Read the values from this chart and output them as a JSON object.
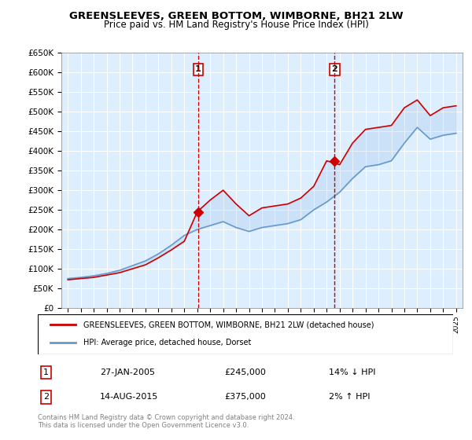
{
  "title": "GREENSLEEVES, GREEN BOTTOM, WIMBORNE, BH21 2LW",
  "subtitle": "Price paid vs. HM Land Registry's House Price Index (HPI)",
  "ylabel_ticks": [
    "£0",
    "£50K",
    "£100K",
    "£150K",
    "£200K",
    "£250K",
    "£300K",
    "£350K",
    "£400K",
    "£450K",
    "£500K",
    "£550K",
    "£600K",
    "£650K"
  ],
  "ytick_values": [
    0,
    50000,
    100000,
    150000,
    200000,
    250000,
    300000,
    350000,
    400000,
    450000,
    500000,
    550000,
    600000,
    650000
  ],
  "x_years": [
    1995,
    1996,
    1997,
    1998,
    1999,
    2000,
    2001,
    2002,
    2003,
    2004,
    2005,
    2006,
    2007,
    2008,
    2009,
    2010,
    2011,
    2012,
    2013,
    2014,
    2015,
    2016,
    2017,
    2018,
    2019,
    2020,
    2021,
    2022,
    2023,
    2024,
    2025
  ],
  "hpi_values": [
    75000,
    78000,
    82000,
    88000,
    96000,
    108000,
    120000,
    138000,
    160000,
    185000,
    200000,
    210000,
    220000,
    205000,
    195000,
    205000,
    210000,
    215000,
    225000,
    250000,
    270000,
    295000,
    330000,
    360000,
    365000,
    375000,
    420000,
    460000,
    430000,
    440000,
    445000
  ],
  "property_values": [
    72000,
    75000,
    78000,
    84000,
    90000,
    100000,
    110000,
    128000,
    148000,
    170000,
    245000,
    275000,
    300000,
    265000,
    235000,
    255000,
    260000,
    265000,
    280000,
    310000,
    375000,
    365000,
    420000,
    455000,
    460000,
    465000,
    510000,
    530000,
    490000,
    510000,
    515000
  ],
  "sale_1_x": 2005.07,
  "sale_1_y": 245000,
  "sale_2_x": 2015.62,
  "sale_2_y": 375000,
  "sale_1_label": "1",
  "sale_2_label": "2",
  "vline_1_x": 2005.07,
  "vline_2_x": 2015.62,
  "legend_line1": "GREENSLEEVES, GREEN BOTTOM, WIMBORNE, BH21 2LW (detached house)",
  "legend_line2": "HPI: Average price, detached house, Dorset",
  "annotation_1_box": "1",
  "annotation_1_date": "27-JAN-2005",
  "annotation_1_price": "£245,000",
  "annotation_1_hpi": "14% ↓ HPI",
  "annotation_2_box": "2",
  "annotation_2_date": "14-AUG-2015",
  "annotation_2_price": "£375,000",
  "annotation_2_hpi": "2% ↑ HPI",
  "footer": "Contains HM Land Registry data © Crown copyright and database right 2024.\nThis data is licensed under the Open Government Licence v3.0.",
  "line_color_property": "#cc0000",
  "line_color_hpi": "#6699cc",
  "background_color": "#ddeeff",
  "plot_bg": "#ffffff",
  "vline_color": "#cc0000",
  "ylim": [
    0,
    650000
  ],
  "xlim_start": 1994.5,
  "xlim_end": 2025.5
}
